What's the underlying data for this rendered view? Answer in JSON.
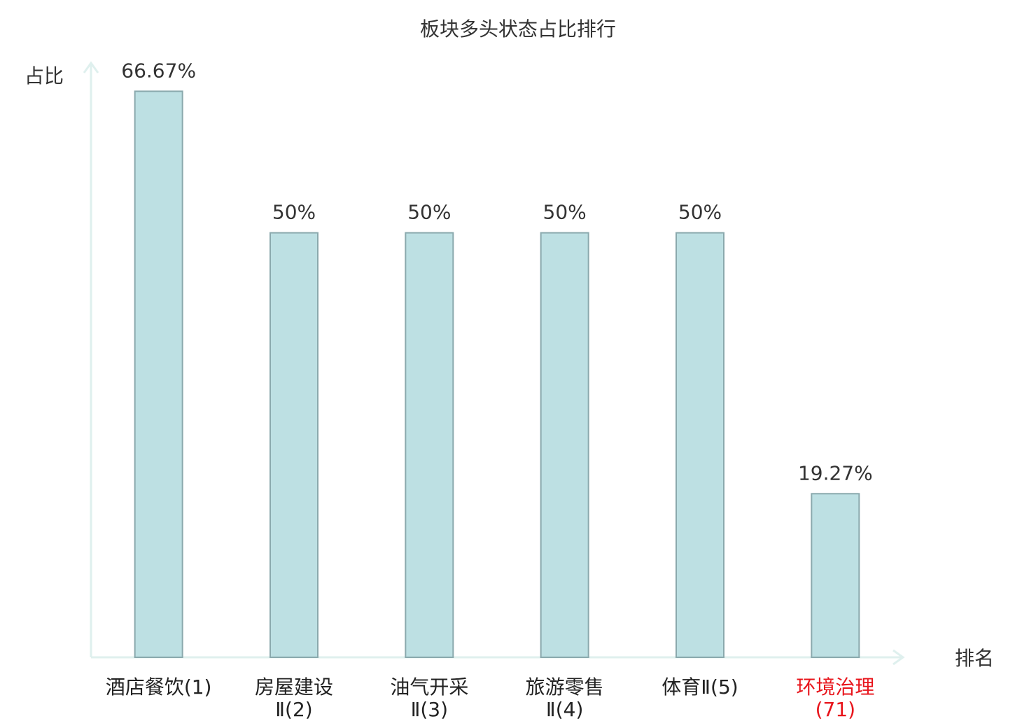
{
  "chart_data": {
    "type": "bar",
    "title": "板块多头状态占比排行",
    "y_label": "占比",
    "x_label": "排名",
    "categories": [
      "酒店餐饮(1)",
      "房屋建设Ⅱ(2)",
      "油气开采Ⅱ(3)",
      "旅游零售Ⅱ(4)",
      "体育Ⅱ(5)",
      "环境治理(71)"
    ],
    "values": [
      66.67,
      50,
      50,
      50,
      50,
      19.27
    ],
    "value_labels": [
      "66.67%",
      "50%",
      "50%",
      "50%",
      "50%",
      "19.27%"
    ],
    "color": "#bde0e3",
    "edge_color": "#8aa9ad",
    "axis_color": "#dff0ee",
    "highlight": {
      "index": 5,
      "color": "#e8141b"
    },
    "ylim": [
      0,
      70
    ]
  }
}
